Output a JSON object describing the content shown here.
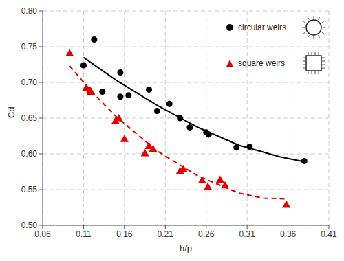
{
  "chart_data": {
    "type": "scatter",
    "x_label": "h/p",
    "y_label": "Cd",
    "xlim": [
      0.06,
      0.41
    ],
    "ylim": [
      0.5,
      0.8
    ],
    "xticks": [
      0.06,
      0.11,
      0.16,
      0.21,
      0.26,
      0.31,
      0.36,
      0.41
    ],
    "yticks": [
      {
        "value": 0.5,
        "label": "0.50"
      },
      0.55,
      {
        "value": 0.6,
        "label": "0.60"
      },
      0.65,
      {
        "value": 0.7,
        "label": "0.70"
      },
      0.75,
      {
        "value": 0.8,
        "label": "0.80"
      }
    ],
    "grid": true,
    "legend": "upper right",
    "series": [
      {
        "name": "circular weirs",
        "color": "#000000",
        "marker": "circle",
        "x": [
          0.11,
          0.123,
          0.133,
          0.155,
          0.155,
          0.165,
          0.19,
          0.2,
          0.215,
          0.228,
          0.24,
          0.26,
          0.263,
          0.297,
          0.313,
          0.38
        ],
        "values": [
          0.724,
          0.76,
          0.687,
          0.714,
          0.68,
          0.682,
          0.69,
          0.66,
          0.67,
          0.65,
          0.637,
          0.63,
          0.627,
          0.609,
          0.61,
          0.59
        ],
        "trend": {
          "line_style": "solid",
          "x": [
            0.11,
            0.15,
            0.2,
            0.25,
            0.3,
            0.35,
            0.38
          ],
          "values": [
            0.735,
            0.703,
            0.668,
            0.637,
            0.612,
            0.596,
            0.589
          ]
        }
      },
      {
        "name": "square weirs",
        "color": "#e00000",
        "marker": "triangle",
        "x": [
          0.093,
          0.113,
          0.118,
          0.119,
          0.149,
          0.153,
          0.16,
          0.185,
          0.19,
          0.195,
          0.228,
          0.232,
          0.255,
          0.262,
          0.277,
          0.283,
          0.358
        ],
        "values": [
          0.74,
          0.691,
          0.688,
          0.686,
          0.645,
          0.649,
          0.62,
          0.6,
          0.61,
          0.606,
          0.575,
          0.578,
          0.562,
          0.553,
          0.563,
          0.555,
          0.528
        ],
        "trend": {
          "line_style": "dashed",
          "x": [
            0.093,
            0.12,
            0.15,
            0.2,
            0.25,
            0.3,
            0.33,
            0.358
          ],
          "values": [
            0.723,
            0.687,
            0.652,
            0.604,
            0.569,
            0.545,
            0.538,
            0.537
          ]
        }
      }
    ]
  }
}
